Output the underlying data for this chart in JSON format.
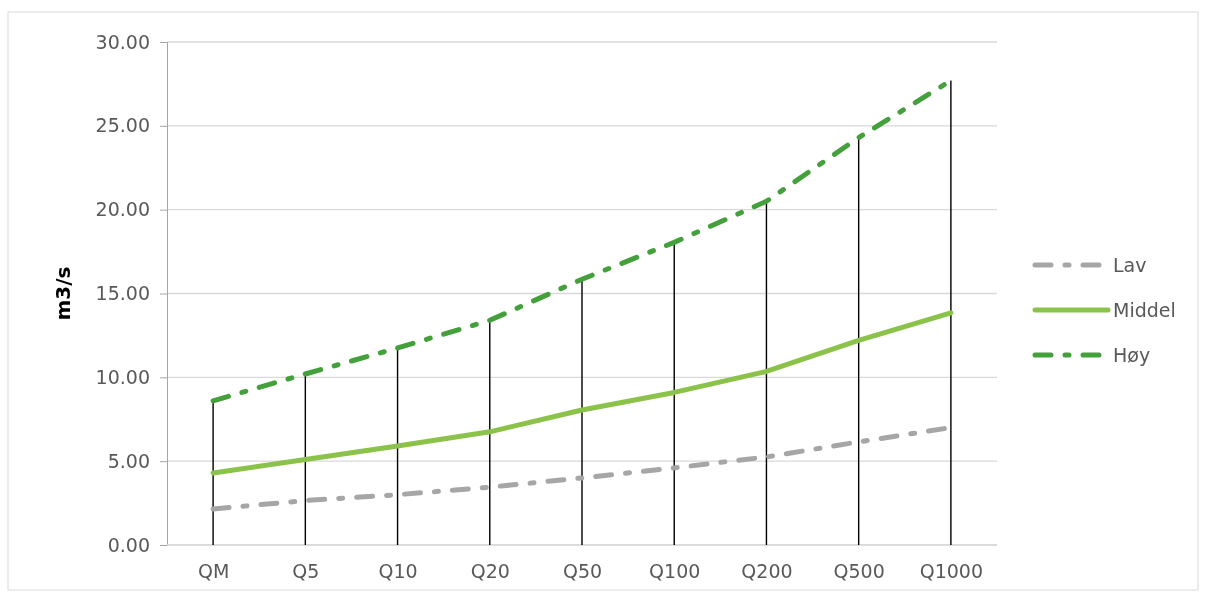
{
  "chart_data": {
    "type": "line",
    "ylabel": "m3/s",
    "categories": [
      "QM",
      "Q5",
      "Q10",
      "Q20",
      "Q50",
      "Q100",
      "Q200",
      "Q500",
      "Q1000"
    ],
    "ylim": [
      0,
      30
    ],
    "yticks": [
      {
        "value": 0,
        "label": "0.00"
      },
      {
        "value": 5,
        "label": "5.00"
      },
      {
        "value": 10,
        "label": "10.00"
      },
      {
        "value": 15,
        "label": "15.00"
      },
      {
        "value": 20,
        "label": "20.00"
      },
      {
        "value": 25,
        "label": "25.00"
      },
      {
        "value": 30,
        "label": "30.00"
      }
    ],
    "grid": "y",
    "legend": "right",
    "series": [
      {
        "type": "bar",
        "color": "#000000",
        "values": [
          8.6,
          10.2,
          11.75,
          13.4,
          15.85,
          18.05,
          20.5,
          24.3,
          27.7
        ]
      },
      {
        "name": "Lav",
        "color": "#a6a6a6",
        "line_style": "dashed",
        "values": [
          2.15,
          2.65,
          3.0,
          3.45,
          4.0,
          4.6,
          5.25,
          6.15,
          7.0
        ]
      },
      {
        "name": "Middel",
        "color": "#8bc34a",
        "line_style": "solid",
        "values": [
          4.3,
          5.1,
          5.9,
          6.75,
          8.05,
          9.1,
          10.35,
          12.2,
          13.85
        ]
      },
      {
        "name": "Høy",
        "color": "#43a03a",
        "line_style": "dashed",
        "values": [
          8.6,
          10.2,
          11.75,
          13.4,
          15.85,
          18.05,
          20.5,
          24.3,
          27.7
        ]
      }
    ]
  }
}
